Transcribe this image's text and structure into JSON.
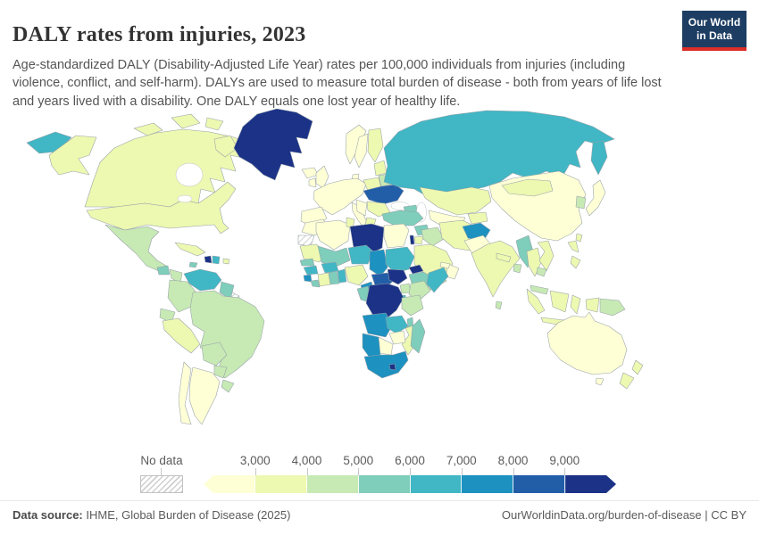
{
  "header": {
    "title": "DALY rates from injuries, 2023",
    "subtitle": "Age-standardized DALY (Disability-Adjusted Life Year) rates per 100,000 individuals from injuries (including violence, conflict, and self-harm). DALYs are used to measure total burden of disease - both from years of life lost and years lived with a disability. One DALY equals one lost year of healthy life.",
    "logo": {
      "line1": "Our World",
      "line2": "in Data",
      "bg_color": "#1d3d63",
      "accent_color": "#dc2e27"
    }
  },
  "legend": {
    "no_data_label": "No data",
    "ticks": [
      "3,000",
      "4,000",
      "5,000",
      "6,000",
      "7,000",
      "8,000",
      "9,000"
    ]
  },
  "footer": {
    "datasource_label": "Data source:",
    "datasource_value": " IHME, Global Burden of Disease (2025)",
    "link": "OurWorldinData.org/burden-of-disease",
    "license": " | CC BY"
  },
  "chart_data": {
    "type": "choropleth",
    "title": "DALY rates from injuries, 2023",
    "unit": "age-standardized DALYs from injuries per 100,000 individuals",
    "year": 2023,
    "legend_position": "bottom",
    "no_data_pattern": "diagonal-hatch",
    "bins": [
      {
        "id": "under-3000",
        "range": "< 3,000",
        "color": "#ffffd6"
      },
      {
        "id": "3000-4000",
        "range": "3,000 – 4,000",
        "color": "#edf8b1"
      },
      {
        "id": "4000-5000",
        "range": "4,000 – 5,000",
        "color": "#c7e9b4"
      },
      {
        "id": "5000-6000",
        "range": "5,000 – 6,000",
        "color": "#7fcdbb"
      },
      {
        "id": "6000-7000",
        "range": "6,000 – 7,000",
        "color": "#41b6c4"
      },
      {
        "id": "7000-8000",
        "range": "7,000 – 8,000",
        "color": "#1d91c0"
      },
      {
        "id": "8000-9000",
        "range": "8,000 – 9,000",
        "color": "#225ea8"
      },
      {
        "id": "over-9000",
        "range": "> 9,000",
        "color": "#1b3287"
      }
    ],
    "regions": {
      "russia": "6000-7000",
      "greenland": "over-9000",
      "canada": "3000-4000",
      "alaska": "3000-4000",
      "usa": "3000-4000",
      "mexico": "4000-5000",
      "guatemala": "5000-6000",
      "honduras-nicaragua": "4000-5000",
      "costa-rica-panama": "5000-6000",
      "cuba": "3000-4000",
      "haiti": "over-9000",
      "dominican-republic": "6000-7000",
      "jamaica": "5000-6000",
      "puerto-rico": "3000-4000",
      "venezuela": "6000-7000",
      "colombia": "4000-5000",
      "guyana-suriname": "5000-6000",
      "french-guiana": "no-data",
      "ecuador": "4000-5000",
      "peru": "3000-4000",
      "brazil": "4000-5000",
      "bolivia": "4000-5000",
      "paraguay": "4000-5000",
      "uruguay": "4000-5000",
      "argentina": "under-3000",
      "chile": "under-3000",
      "iceland": "under-3000",
      "uk": "under-3000",
      "ireland": "under-3000",
      "norway": "under-3000",
      "sweden": "under-3000",
      "finland": "3000-4000",
      "denmark": "under-3000",
      "western-europe": "under-3000",
      "iberia": "under-3000",
      "italy": "under-3000",
      "poland": "3000-4000",
      "baltics": "3000-4000",
      "belarus": "4000-5000",
      "ukraine": "8000-9000",
      "romania-bulgaria": "3000-4000",
      "balkans": "under-3000",
      "greece": "3000-4000",
      "kazakhstan": "3000-4000",
      "uzbekistan-turkmenistan": "under-3000",
      "kyrgyzstan-tajikistan": "3000-4000",
      "caucasus": "5000-6000",
      "turkey": "5000-6000",
      "syria": "5000-6000",
      "palestine": "over-9000",
      "jordan": "3000-4000",
      "iraq": "4000-5000",
      "iran": "3000-4000",
      "saudi-arabia": "3000-4000",
      "yemen": "4000-5000",
      "oman": "under-3000",
      "uae-qatar": "under-3000",
      "afghanistan": "7000-8000",
      "pakistan": "under-3000",
      "india": "3000-4000",
      "sri-lanka": "4000-5000",
      "nepal": "3000-4000",
      "bangladesh": "4000-5000",
      "china": "under-3000",
      "mongolia": "3000-4000",
      "myanmar": "5000-6000",
      "thailand": "3000-4000",
      "vietnam-laos": "3000-4000",
      "cambodia": "4000-5000",
      "malaysia": "4000-5000",
      "south-korea": "4000-5000",
      "japan": "under-3000",
      "taiwan": "3000-4000",
      "philippines": "3000-4000",
      "indonesia": "3000-4000",
      "papua-new-guinea": "4000-5000",
      "australia": "under-3000",
      "new-zealand": "3000-4000",
      "morocco": "under-3000",
      "western-sahara": "no-data",
      "algeria": "under-3000",
      "tunisia": "3000-4000",
      "libya": "over-9000",
      "egypt": "under-3000",
      "mauritania": "3000-4000",
      "mali": "5000-6000",
      "niger": "6000-7000",
      "chad": "7000-8000",
      "sudan": "6000-7000",
      "eritrea": "over-9000",
      "ethiopia": "5000-6000",
      "somalia": "6000-7000",
      "senegal": "5000-6000",
      "guinea": "6000-7000",
      "sierra-leone": "7000-8000",
      "liberia": "5000-6000",
      "ivory-coast": "3000-4000",
      "burkina-faso": "6000-7000",
      "ghana": "5000-6000",
      "togo-benin": "6000-7000",
      "nigeria": "3000-4000",
      "cameroon": "7000-8000",
      "central-african-republic": "8000-9000",
      "south-sudan": "over-9000",
      "uganda": "4000-5000",
      "kenya": "4000-5000",
      "rwanda-burundi": "6000-7000",
      "gabon-congo": "5000-6000",
      "dr-congo": "over-9000",
      "tanzania": "4000-5000",
      "angola": "7000-8000",
      "zambia": "6000-7000",
      "malawi": "5000-6000",
      "mozambique": "3000-4000",
      "zimbabwe": "under-3000",
      "botswana": "under-3000",
      "namibia": "7000-8000",
      "south-africa": "7000-8000",
      "lesotho": "over-9000",
      "madagascar": "5000-6000"
    }
  }
}
